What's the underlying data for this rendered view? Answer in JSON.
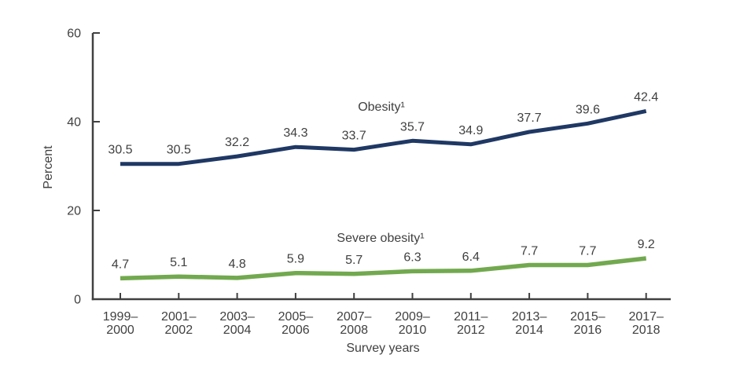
{
  "page": {
    "background_color": "#ffffff"
  },
  "chart_data": {
    "type": "line",
    "title": "",
    "xlabel": "Survey years",
    "ylabel": "Percent",
    "ylim": [
      0,
      60
    ],
    "yticks": [
      0,
      20,
      40,
      60
    ],
    "grid": false,
    "legend_position": "inline-labels-on-chart",
    "axis_color": "#404040",
    "text_color": "#404040",
    "categories": [
      "1999–2000",
      "2001–2002",
      "2003–2004",
      "2005–2006",
      "2007–2008",
      "2009–2010",
      "2011–2012",
      "2013–2014",
      "2015–2016",
      "2017–2018"
    ],
    "series": [
      {
        "name": "Obesity¹",
        "color": "#1f3864",
        "values": [
          30.5,
          30.5,
          32.2,
          34.3,
          33.7,
          35.7,
          34.9,
          37.7,
          39.6,
          42.4
        ]
      },
      {
        "name": "Severe obesity¹",
        "color": "#72a94f",
        "values": [
          4.7,
          5.1,
          4.8,
          5.9,
          5.7,
          6.3,
          6.4,
          7.7,
          7.7,
          9.2
        ]
      }
    ]
  }
}
